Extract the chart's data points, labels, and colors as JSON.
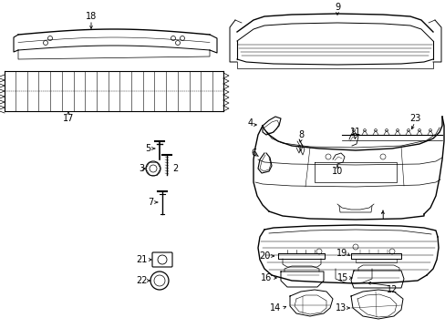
{
  "background_color": "#ffffff",
  "fig_width": 4.89,
  "fig_height": 3.6,
  "dpi": 100,
  "line_color": "#000000",
  "text_color": "#000000",
  "label_fontsize": 7.0
}
